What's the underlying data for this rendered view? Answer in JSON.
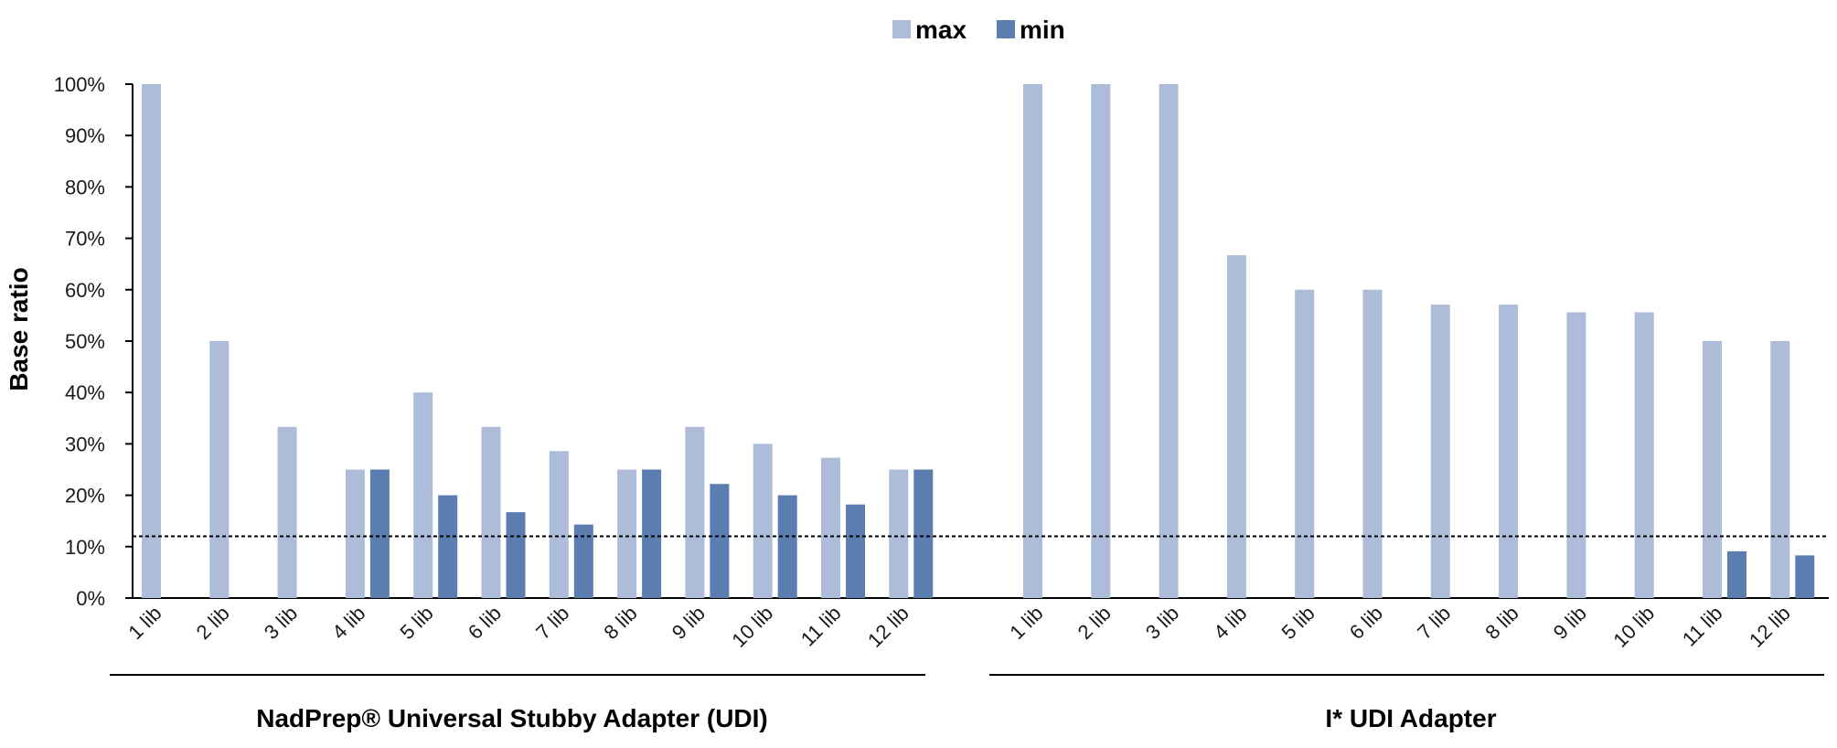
{
  "chart_data": {
    "type": "bar",
    "ylabel": "Base ratio",
    "ylim": [
      0,
      100
    ],
    "yticks": [
      "0%",
      "10%",
      "20%",
      "30%",
      "40%",
      "50%",
      "60%",
      "70%",
      "80%",
      "90%",
      "100%"
    ],
    "reference_line": {
      "value": 12,
      "style": "dotted"
    },
    "legend": {
      "position": "top-center",
      "entries": [
        "max",
        "min"
      ]
    },
    "colors": {
      "max": "#adbcd9",
      "min": "#5b7db0"
    },
    "groups": [
      {
        "label": "NadPrep® Universal Stubby Adapter (UDI)",
        "categories": [
          "1 lib",
          "2 lib",
          "3 lib",
          "4 lib",
          "5 lib",
          "6 lib",
          "7 lib",
          "8 lib",
          "9 lib",
          "10 lib",
          "11 lib",
          "12 lib"
        ],
        "series": [
          {
            "name": "max",
            "values": [
              100,
              50,
              33.3,
              25,
              40,
              33.3,
              28.6,
              25,
              33.3,
              30,
              27.3,
              25
            ]
          },
          {
            "name": "min",
            "values": [
              null,
              null,
              null,
              25,
              20,
              16.7,
              14.3,
              25,
              22.2,
              20,
              18.2,
              25
            ]
          }
        ]
      },
      {
        "label": "I* UDI Adapter",
        "categories": [
          "1 lib",
          "2 lib",
          "3 lib",
          "4 lib",
          "5 lib",
          "6 lib",
          "7 lib",
          "8 lib",
          "9 lib",
          "10 lib",
          "11 lib",
          "12 lib"
        ],
        "series": [
          {
            "name": "max",
            "values": [
              100,
              100,
              100,
              66.7,
              60,
              60,
              57.1,
              57.1,
              55.6,
              55.6,
              50,
              50
            ]
          },
          {
            "name": "min",
            "values": [
              null,
              null,
              null,
              null,
              null,
              null,
              null,
              null,
              null,
              null,
              9.1,
              8.3
            ]
          }
        ]
      }
    ]
  }
}
